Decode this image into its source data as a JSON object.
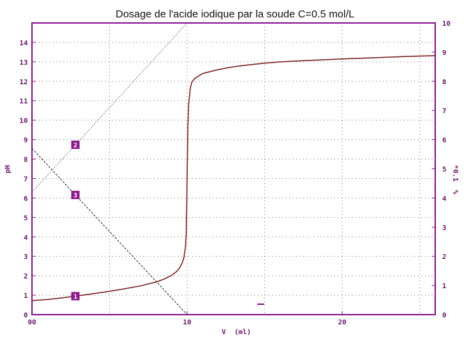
{
  "chart_data": {
    "type": "line",
    "title": "Dosage de l'acide iodique par la soude C=0.5 mol/L",
    "xlabel": "V  (ml)",
    "ylabel": "pH",
    "y2label": "*0.1  %",
    "xlim": [
      0,
      26
    ],
    "ylim": [
      0,
      15
    ],
    "y2lim": [
      0,
      10
    ],
    "x_ticks": [
      {
        "value": 0,
        "label": "00"
      },
      {
        "value": 10,
        "label": "10"
      },
      {
        "value": 20,
        "label": "20"
      }
    ],
    "y_ticks": [
      "0",
      "1",
      "2",
      "3",
      "4",
      "5",
      "6",
      "7",
      "8",
      "9",
      "10",
      "11",
      "12",
      "13",
      "14"
    ],
    "y2_ticks": [
      "0",
      "1",
      "2",
      "3",
      "4",
      "5",
      "6",
      "7",
      "8",
      "9",
      "10"
    ],
    "grid": true,
    "colors": {
      "frame": "#8b1a8b",
      "curve": "#7a1e1e",
      "marker": "#8b1a8b",
      "grid": "#777777"
    },
    "series": [
      {
        "marker": "1",
        "axis": "left",
        "style": "solid",
        "x": [
          0,
          1,
          2,
          3,
          4,
          5,
          6,
          7,
          8,
          8.5,
          9,
          9.3,
          9.5,
          9.7,
          9.8,
          9.9,
          9.95,
          10.0,
          10.05,
          10.1,
          10.2,
          10.3,
          10.5,
          11,
          12,
          13,
          14,
          15,
          16,
          18,
          20,
          22,
          24,
          26
        ],
        "y": [
          0.72,
          0.78,
          0.87,
          0.97,
          1.08,
          1.2,
          1.33,
          1.48,
          1.68,
          1.82,
          2.02,
          2.2,
          2.38,
          2.68,
          2.95,
          3.5,
          4.3,
          7.0,
          9.7,
          10.8,
          11.6,
          11.95,
          12.15,
          12.4,
          12.6,
          12.75,
          12.85,
          12.93,
          13.0,
          13.08,
          13.15,
          13.21,
          13.27,
          13.32
        ]
      },
      {
        "marker": "2",
        "axis": "right",
        "style": "dotted",
        "x": [
          0,
          10
        ],
        "y": [
          4.2,
          10.0
        ]
      },
      {
        "marker": "3",
        "axis": "right",
        "style": "dashed",
        "x": [
          0,
          10
        ],
        "y": [
          5.7,
          0
        ]
      }
    ]
  }
}
